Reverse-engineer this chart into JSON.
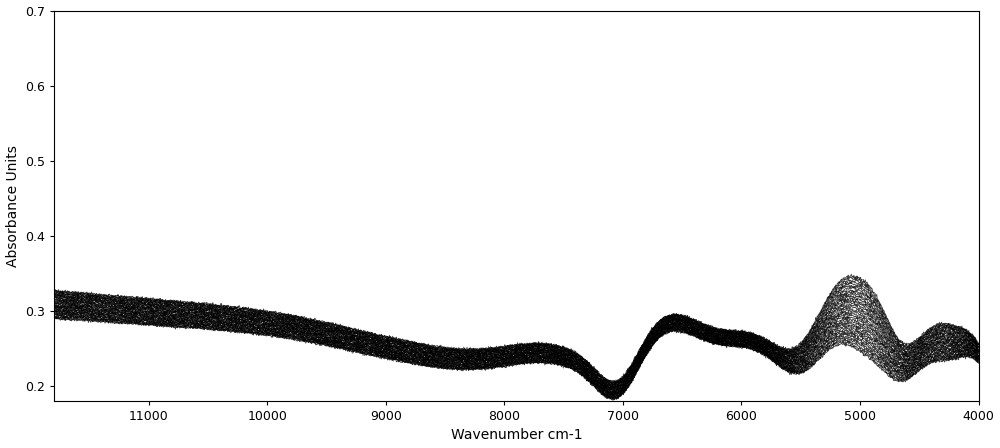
{
  "x_min": 4000,
  "x_max": 11800,
  "y_min": 0.18,
  "y_max": 0.7,
  "xlabel": "Wavenumber cm-1",
  "ylabel": "Absorbance Units",
  "x_ticks": [
    11000,
    10000,
    9000,
    8000,
    7000,
    6000,
    5000,
    4000
  ],
  "y_ticks": [
    0.2,
    0.3,
    0.4,
    0.5,
    0.6,
    0.7
  ],
  "n_spectra": 35,
  "background_color": "#ffffff",
  "line_color": "#000000",
  "line_alpha": 0.75,
  "line_width": 0.6,
  "fig_width": 10.0,
  "fig_height": 4.48
}
